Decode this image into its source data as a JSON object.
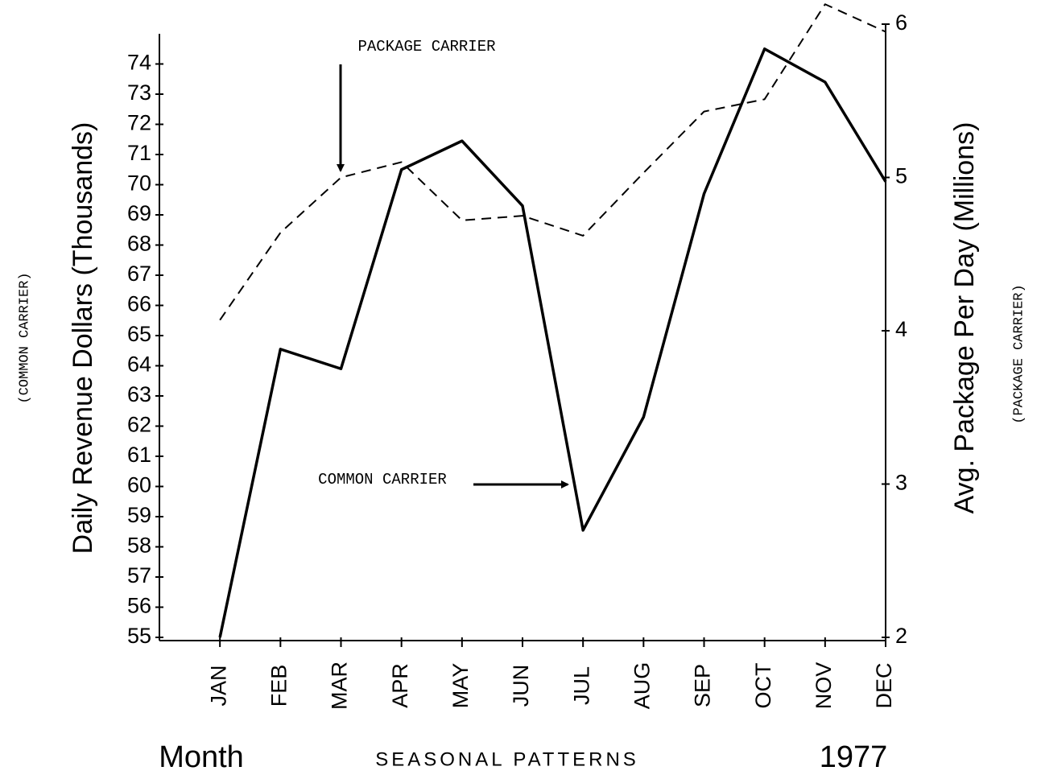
{
  "chart_data": {
    "type": "line",
    "title": "SEASONAL PATTERNS",
    "subtitle": "1977",
    "x_label": "Month",
    "y_label": "Daily Revenue Dollars (Thousands)",
    "y_label_note": "(COMMON CARRIER)",
    "y2_label": "Avg. Package Per Day (Millions)",
    "y2_label_note": "(PACKAGE CARRIER)",
    "annotations": [
      "PACKAGE CARRIER",
      "COMMON CARRIER"
    ],
    "categories": [
      "JAN",
      "FEB",
      "MAR",
      "APR",
      "MAY",
      "JUN",
      "JUL",
      "AUG",
      "SEP",
      "OCT",
      "NOV",
      "DEC"
    ],
    "series": [
      {
        "name": "COMMON CARRIER",
        "color": "#000000",
        "dashed": false,
        "values": [
          55,
          64.55,
          63.9,
          70.5,
          71.45,
          69.3,
          58.55,
          62.3,
          69.7,
          74.5,
          73.4,
          70.1
        ]
      },
      {
        "name": "PACKAGE CARRIER",
        "color": "#000000",
        "dashed": true,
        "axis": "y2",
        "values": [
          4.07,
          4.64,
          5.0,
          5.1,
          4.72,
          4.75,
          4.62,
          5.03,
          5.43,
          5.51,
          6.13,
          5.95
        ]
      }
    ],
    "ylim": [
      55,
      75
    ],
    "yticks": [
      55,
      56,
      57,
      58,
      59,
      60,
      61,
      62,
      63,
      64,
      65,
      66,
      67,
      68,
      69,
      70,
      71,
      72,
      73,
      74
    ],
    "y2lim": [
      2,
      6
    ],
    "y2ticks": [
      2,
      3,
      4,
      5,
      6
    ],
    "grid": false
  }
}
